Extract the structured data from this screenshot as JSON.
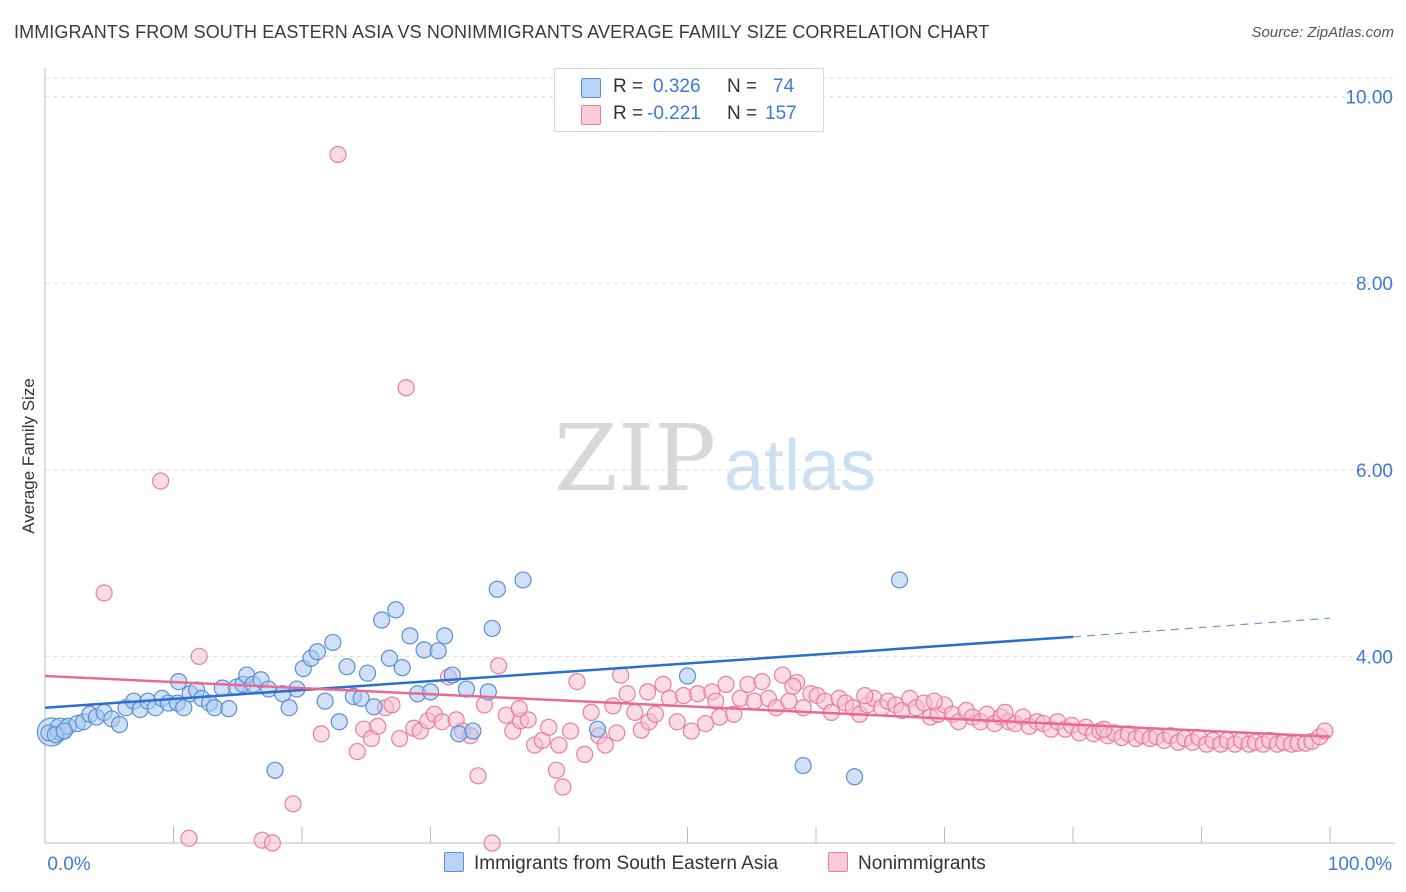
{
  "title": "IMMIGRANTS FROM SOUTH EASTERN ASIA VS NONIMMIGRANTS AVERAGE FAMILY SIZE CORRELATION CHART",
  "source": "Source: ZipAtlas.com",
  "watermark": {
    "zip": "ZIP",
    "atlas": "atlas"
  },
  "legend_stats": {
    "r_label": "R =",
    "n_label": "N =",
    "series1": {
      "r": "0.326",
      "n": "74"
    },
    "series2": {
      "r": "-0.221",
      "n": "157"
    }
  },
  "colors": {
    "blue_fill": "#a9c8f0",
    "blue_stroke": "#5a8fd6",
    "blue_line": "#2a6fcf",
    "pink_fill": "#f6bfd0",
    "pink_stroke": "#e87ea0",
    "pink_line": "#e86a94",
    "axis_label": "#3b7bd4",
    "grid": "#dcdcdc"
  },
  "chart_data": {
    "type": "scatter",
    "title": "IMMIGRANTS FROM SOUTH EASTERN ASIA VS NONIMMIGRANTS AVERAGE FAMILY SIZE CORRELATION CHART",
    "xlabel": "",
    "ylabel": "Average Family Size",
    "xlim": [
      0,
      100
    ],
    "ylim": [
      2.0,
      10.2
    ],
    "x_tick_labels": [
      "0.0%",
      "100.0%"
    ],
    "y_ticks": [
      4.0,
      6.0,
      8.0,
      10.0
    ],
    "y_tick_labels": [
      "4.00",
      "6.00",
      "8.00",
      "10.00"
    ],
    "grid": true,
    "legend_position": "bottom",
    "series": [
      {
        "name": "Immigrants from South Eastern Asia",
        "r": 0.326,
        "n": 74,
        "trend": {
          "x": [
            0,
            80
          ],
          "y": [
            3.45,
            4.21
          ],
          "dashed_to": [
            100,
            4.41
          ]
        },
        "points": [
          [
            0.5,
            3.19
          ],
          [
            1.2,
            3.22
          ],
          [
            1.8,
            3.25
          ],
          [
            2.5,
            3.28
          ],
          [
            3.0,
            3.3
          ],
          [
            3.5,
            3.38
          ],
          [
            4.0,
            3.35
          ],
          [
            4.6,
            3.4
          ],
          [
            5.2,
            3.33
          ],
          [
            5.8,
            3.27
          ],
          [
            6.3,
            3.45
          ],
          [
            6.9,
            3.52
          ],
          [
            7.4,
            3.43
          ],
          [
            8.0,
            3.52
          ],
          [
            8.6,
            3.45
          ],
          [
            9.1,
            3.55
          ],
          [
            9.6,
            3.5
          ],
          [
            10.3,
            3.5
          ],
          [
            10.4,
            3.73
          ],
          [
            10.8,
            3.45
          ],
          [
            11.3,
            3.6
          ],
          [
            11.8,
            3.64
          ],
          [
            12.2,
            3.55
          ],
          [
            12.8,
            3.5
          ],
          [
            13.2,
            3.45
          ],
          [
            13.8,
            3.66
          ],
          [
            14.3,
            3.44
          ],
          [
            14.9,
            3.67
          ],
          [
            15.4,
            3.7
          ],
          [
            15.7,
            3.8
          ],
          [
            16.2,
            3.7
          ],
          [
            16.8,
            3.75
          ],
          [
            17.4,
            3.65
          ],
          [
            17.9,
            2.78
          ],
          [
            18.5,
            3.6
          ],
          [
            19.0,
            3.45
          ],
          [
            19.6,
            3.65
          ],
          [
            20.1,
            3.87
          ],
          [
            20.7,
            3.98
          ],
          [
            21.2,
            4.05
          ],
          [
            21.8,
            3.52
          ],
          [
            22.4,
            4.15
          ],
          [
            22.9,
            3.3
          ],
          [
            23.5,
            3.89
          ],
          [
            24.0,
            3.57
          ],
          [
            24.6,
            3.55
          ],
          [
            25.1,
            3.82
          ],
          [
            25.6,
            3.46
          ],
          [
            26.2,
            4.39
          ],
          [
            26.8,
            3.98
          ],
          [
            27.3,
            4.5
          ],
          [
            27.8,
            3.88
          ],
          [
            28.4,
            4.22
          ],
          [
            29.0,
            3.6
          ],
          [
            29.5,
            4.07
          ],
          [
            30.0,
            3.62
          ],
          [
            30.6,
            4.06
          ],
          [
            31.1,
            4.22
          ],
          [
            31.7,
            3.8
          ],
          [
            32.2,
            3.17
          ],
          [
            32.8,
            3.65
          ],
          [
            33.3,
            3.2
          ],
          [
            34.5,
            3.62
          ],
          [
            34.8,
            4.3
          ],
          [
            35.2,
            4.72
          ],
          [
            37.2,
            4.82
          ],
          [
            43.0,
            3.22
          ],
          [
            50.0,
            3.79
          ],
          [
            59.0,
            2.83
          ],
          [
            63.0,
            2.71
          ],
          [
            66.5,
            4.82
          ],
          [
            0.3,
            3.18
          ],
          [
            0.8,
            3.16
          ],
          [
            1.5,
            3.2
          ]
        ]
      },
      {
        "name": "Nonimmigrants",
        "r": -0.221,
        "n": 157,
        "trend": {
          "x": [
            0,
            100
          ],
          "y": [
            3.79,
            3.14
          ]
        },
        "points": [
          [
            4.6,
            4.68
          ],
          [
            9.0,
            5.88
          ],
          [
            12.0,
            4.0
          ],
          [
            11.2,
            2.05
          ],
          [
            16.9,
            2.03
          ],
          [
            19.3,
            2.42
          ],
          [
            21.5,
            3.17
          ],
          [
            22.8,
            9.38
          ],
          [
            24.3,
            2.98
          ],
          [
            24.8,
            3.22
          ],
          [
            25.4,
            3.12
          ],
          [
            25.9,
            3.25
          ],
          [
            26.5,
            3.45
          ],
          [
            27.0,
            3.48
          ],
          [
            27.6,
            3.12
          ],
          [
            28.1,
            6.88
          ],
          [
            28.7,
            3.23
          ],
          [
            29.2,
            3.2
          ],
          [
            29.8,
            3.31
          ],
          [
            30.3,
            3.38
          ],
          [
            30.9,
            3.3
          ],
          [
            31.4,
            3.78
          ],
          [
            32.0,
            3.32
          ],
          [
            32.5,
            3.2
          ],
          [
            33.1,
            3.15
          ],
          [
            33.7,
            2.72
          ],
          [
            34.2,
            3.48
          ],
          [
            34.8,
            2.0
          ],
          [
            35.3,
            3.9
          ],
          [
            35.9,
            3.37
          ],
          [
            36.4,
            3.2
          ],
          [
            37.0,
            3.31
          ],
          [
            37.6,
            3.32
          ],
          [
            38.1,
            3.05
          ],
          [
            38.7,
            3.1
          ],
          [
            39.2,
            3.24
          ],
          [
            39.8,
            2.78
          ],
          [
            40.3,
            2.6
          ],
          [
            40.9,
            3.2
          ],
          [
            41.4,
            3.73
          ],
          [
            42.0,
            2.95
          ],
          [
            42.5,
            3.4
          ],
          [
            43.1,
            3.15
          ],
          [
            43.6,
            3.05
          ],
          [
            44.2,
            3.47
          ],
          [
            44.8,
            3.8
          ],
          [
            45.3,
            3.6
          ],
          [
            45.9,
            3.4
          ],
          [
            46.4,
            3.21
          ],
          [
            47.0,
            3.3
          ],
          [
            47.5,
            3.38
          ],
          [
            48.1,
            3.7
          ],
          [
            48.6,
            3.55
          ],
          [
            49.2,
            3.3
          ],
          [
            49.7,
            3.58
          ],
          [
            50.3,
            3.2
          ],
          [
            50.8,
            3.6
          ],
          [
            51.4,
            3.28
          ],
          [
            51.9,
            3.62
          ],
          [
            52.5,
            3.35
          ],
          [
            53.0,
            3.7
          ],
          [
            53.6,
            3.38
          ],
          [
            54.1,
            3.55
          ],
          [
            54.7,
            3.7
          ],
          [
            55.2,
            3.52
          ],
          [
            55.8,
            3.73
          ],
          [
            56.3,
            3.55
          ],
          [
            56.9,
            3.45
          ],
          [
            57.4,
            3.8
          ],
          [
            57.9,
            3.52
          ],
          [
            58.5,
            3.72
          ],
          [
            59.0,
            3.45
          ],
          [
            59.6,
            3.6
          ],
          [
            60.1,
            3.58
          ],
          [
            60.7,
            3.52
          ],
          [
            61.2,
            3.4
          ],
          [
            61.8,
            3.55
          ],
          [
            62.3,
            3.5
          ],
          [
            62.9,
            3.45
          ],
          [
            63.4,
            3.38
          ],
          [
            64.0,
            3.48
          ],
          [
            64.5,
            3.55
          ],
          [
            65.1,
            3.45
          ],
          [
            65.6,
            3.52
          ],
          [
            66.2,
            3.48
          ],
          [
            66.7,
            3.42
          ],
          [
            67.3,
            3.55
          ],
          [
            67.8,
            3.45
          ],
          [
            68.4,
            3.5
          ],
          [
            68.9,
            3.35
          ],
          [
            69.5,
            3.38
          ],
          [
            70.0,
            3.48
          ],
          [
            70.6,
            3.38
          ],
          [
            71.1,
            3.3
          ],
          [
            71.7,
            3.42
          ],
          [
            72.2,
            3.35
          ],
          [
            72.8,
            3.3
          ],
          [
            73.3,
            3.38
          ],
          [
            73.9,
            3.28
          ],
          [
            74.4,
            3.35
          ],
          [
            75.0,
            3.3
          ],
          [
            75.5,
            3.28
          ],
          [
            76.1,
            3.35
          ],
          [
            76.6,
            3.25
          ],
          [
            77.2,
            3.3
          ],
          [
            77.7,
            3.28
          ],
          [
            78.3,
            3.22
          ],
          [
            78.8,
            3.3
          ],
          [
            79.4,
            3.22
          ],
          [
            79.9,
            3.26
          ],
          [
            80.5,
            3.18
          ],
          [
            81.0,
            3.24
          ],
          [
            81.6,
            3.17
          ],
          [
            82.1,
            3.2
          ],
          [
            82.7,
            3.15
          ],
          [
            83.2,
            3.18
          ],
          [
            83.8,
            3.13
          ],
          [
            84.3,
            3.17
          ],
          [
            84.9,
            3.12
          ],
          [
            85.4,
            3.15
          ],
          [
            86.0,
            3.12
          ],
          [
            86.5,
            3.14
          ],
          [
            87.1,
            3.1
          ],
          [
            87.6,
            3.15
          ],
          [
            88.2,
            3.08
          ],
          [
            88.7,
            3.12
          ],
          [
            89.3,
            3.08
          ],
          [
            89.8,
            3.13
          ],
          [
            90.4,
            3.06
          ],
          [
            90.9,
            3.1
          ],
          [
            91.5,
            3.06
          ],
          [
            92.0,
            3.1
          ],
          [
            92.6,
            3.06
          ],
          [
            93.1,
            3.1
          ],
          [
            93.7,
            3.06
          ],
          [
            94.2,
            3.08
          ],
          [
            94.8,
            3.06
          ],
          [
            95.3,
            3.1
          ],
          [
            95.9,
            3.06
          ],
          [
            96.4,
            3.08
          ],
          [
            97.0,
            3.06
          ],
          [
            97.5,
            3.07
          ],
          [
            98.1,
            3.07
          ],
          [
            98.6,
            3.09
          ],
          [
            99.2,
            3.14
          ],
          [
            99.6,
            3.2
          ],
          [
            17.7,
            2.0
          ],
          [
            36.9,
            3.44
          ],
          [
            40.0,
            3.05
          ],
          [
            44.5,
            3.18
          ],
          [
            46.9,
            3.62
          ],
          [
            52.2,
            3.52
          ],
          [
            58.2,
            3.68
          ],
          [
            63.8,
            3.58
          ],
          [
            69.2,
            3.52
          ],
          [
            74.7,
            3.4
          ],
          [
            82.4,
            3.22
          ]
        ]
      }
    ]
  },
  "bottom_legend": {
    "series1": "Immigrants from South Eastern Asia",
    "series2": "Nonimmigrants"
  }
}
